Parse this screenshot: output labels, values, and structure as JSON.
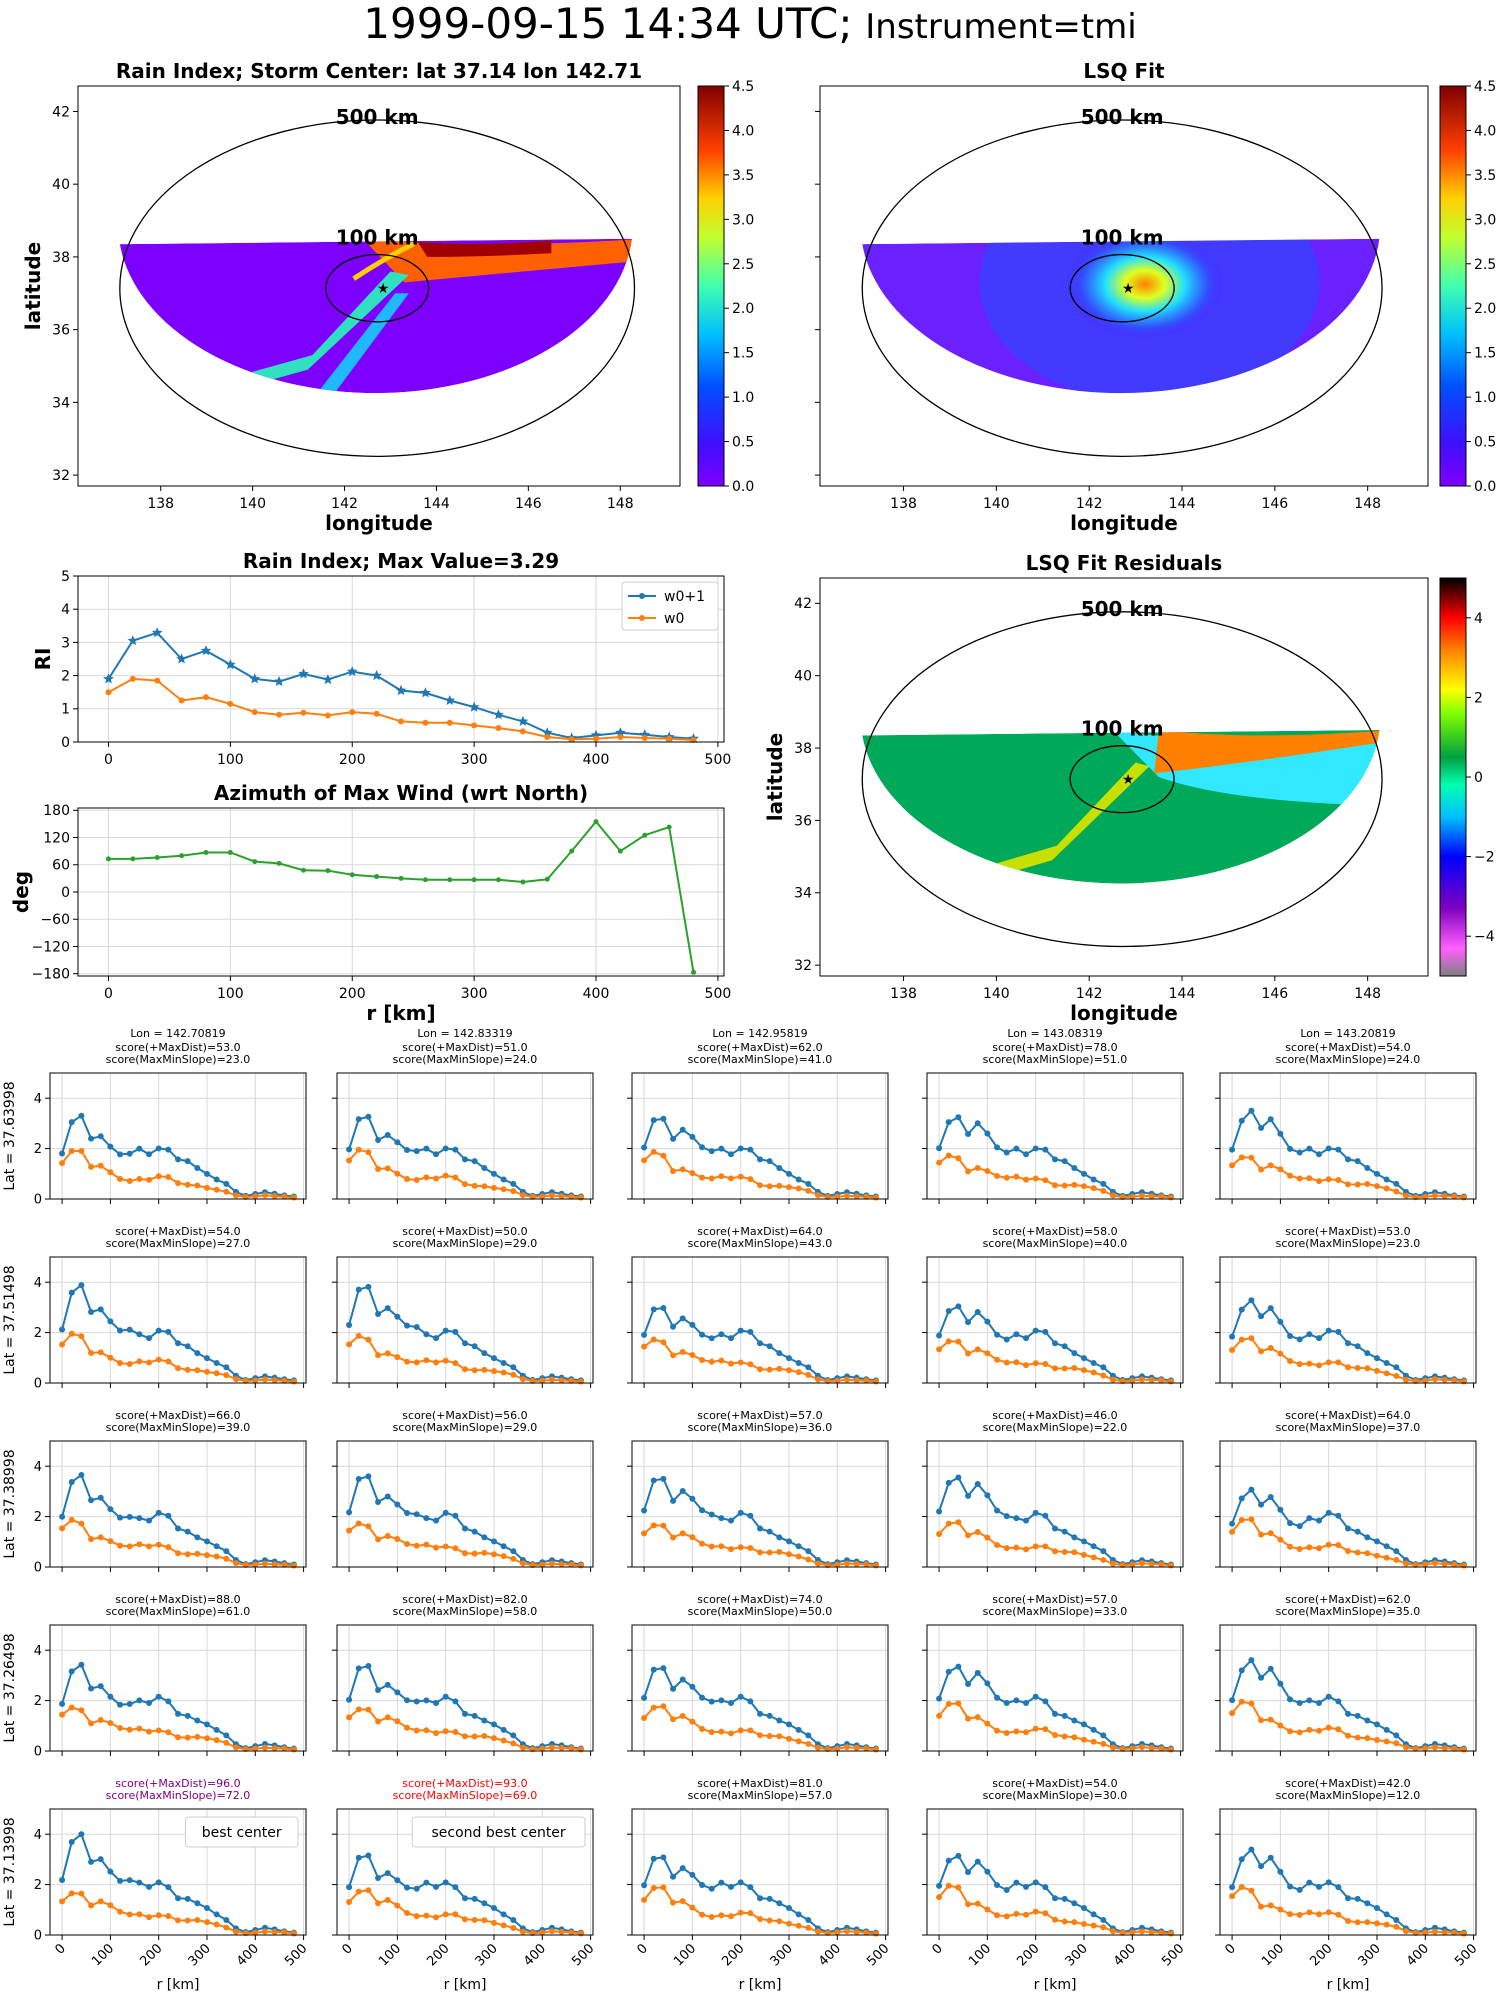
{
  "page": {
    "title_date": "1999-09-15 14:34 UTC;",
    "title_instrument": "Instrument=tmi"
  },
  "chart_data": [
    {
      "id": "rain-index-map",
      "type": "heatmap",
      "title": "Rain Index; Storm Center: lat 37.14 lon 142.71",
      "xlabel": "longitude",
      "ylabel": "latitude",
      "xlim": [
        136.2,
        149.3
      ],
      "ylim": [
        31.7,
        42.7
      ],
      "xticks": [
        138,
        140,
        142,
        144,
        146,
        148
      ],
      "yticks": [
        32,
        34,
        36,
        38,
        40,
        42
      ],
      "center": {
        "lon": 142.71,
        "lat": 37.14
      },
      "ring_labels": [
        "500 km",
        "100 km"
      ],
      "colorbar": {
        "range": [
          0,
          4.5
        ],
        "ticks": [
          "0.0",
          "0.5",
          "1.0",
          "1.5",
          "2.0",
          "2.5",
          "3.0",
          "3.5",
          "4.0",
          "4.5"
        ],
        "colormap": "jet"
      }
    },
    {
      "id": "lsq-fit-map",
      "type": "heatmap",
      "title": "LSQ Fit",
      "xlabel": "longitude",
      "ylabel": "",
      "xlim": [
        136.2,
        149.3
      ],
      "ylim": [
        31.7,
        42.7
      ],
      "xticks": [
        138,
        140,
        142,
        144,
        146,
        148
      ],
      "ring_labels": [
        "500 km",
        "100 km"
      ],
      "colorbar": {
        "range": [
          0,
          4.5
        ],
        "ticks": [
          "0.0",
          "0.5",
          "1.0",
          "1.5",
          "2.0",
          "2.5",
          "3.0",
          "3.5",
          "4.0",
          "4.5"
        ],
        "colormap": "jet"
      }
    },
    {
      "id": "rain-index-profile",
      "type": "line",
      "title": "Rain Index; Max Value=3.29",
      "xlabel": "",
      "ylabel": "RI",
      "xlim": [
        -25,
        505
      ],
      "ylim": [
        0,
        5
      ],
      "xticks": [
        0,
        100,
        200,
        300,
        400,
        500
      ],
      "yticks": [
        0,
        1,
        2,
        3,
        4,
        5
      ],
      "grid": true,
      "legend": "top-right",
      "x": [
        0,
        20,
        40,
        60,
        80,
        100,
        120,
        140,
        160,
        180,
        200,
        220,
        240,
        260,
        280,
        300,
        320,
        340,
        360,
        380,
        400,
        420,
        440,
        460,
        480
      ],
      "series": [
        {
          "name": "w0+1",
          "color": "#1f77b4",
          "values": [
            1.9,
            3.05,
            3.29,
            2.5,
            2.75,
            2.33,
            1.9,
            1.82,
            2.05,
            1.88,
            2.12,
            2.0,
            1.55,
            1.48,
            1.25,
            1.05,
            0.82,
            0.62,
            0.28,
            0.12,
            0.2,
            0.28,
            0.22,
            0.15,
            0.1
          ]
        },
        {
          "name": "w0",
          "color": "#ff7f0e",
          "values": [
            1.5,
            1.9,
            1.85,
            1.25,
            1.35,
            1.15,
            0.9,
            0.82,
            0.88,
            0.8,
            0.9,
            0.85,
            0.62,
            0.58,
            0.58,
            0.5,
            0.42,
            0.32,
            0.15,
            0.08,
            0.1,
            0.15,
            0.12,
            0.1,
            0.06
          ]
        }
      ]
    },
    {
      "id": "azimuth-profile",
      "type": "line",
      "title": "Azimuth of Max Wind (wrt North)",
      "xlabel": "r [km]",
      "ylabel": "deg",
      "xlim": [
        -25,
        505
      ],
      "ylim": [
        -185,
        185
      ],
      "xticks": [
        0,
        100,
        200,
        300,
        400,
        500
      ],
      "yticks": [
        -180,
        -120,
        -60,
        0,
        60,
        120,
        180
      ],
      "grid": true,
      "x": [
        0,
        20,
        40,
        60,
        80,
        100,
        120,
        140,
        160,
        180,
        200,
        220,
        240,
        260,
        280,
        300,
        320,
        340,
        360,
        380,
        400,
        420,
        440,
        460,
        480
      ],
      "series": [
        {
          "color": "#2ca02c",
          "values": [
            73,
            73,
            76,
            80,
            87,
            87,
            67,
            63,
            48,
            47,
            38,
            34,
            30,
            27,
            27,
            27,
            27,
            22,
            28,
            90,
            155,
            90,
            125,
            143,
            -177
          ]
        }
      ]
    },
    {
      "id": "lsq-residuals-map",
      "type": "heatmap",
      "title": "LSQ Fit Residuals",
      "xlabel": "longitude",
      "ylabel": "latitude",
      "xlim": [
        136.2,
        149.3
      ],
      "ylim": [
        31.7,
        42.7
      ],
      "xticks": [
        138,
        140,
        142,
        144,
        146,
        148
      ],
      "yticks": [
        32,
        34,
        36,
        38,
        40,
        42
      ],
      "ring_labels": [
        "500 km",
        "100 km"
      ],
      "colorbar": {
        "range": [
          -5,
          5
        ],
        "ticks": [
          "−4",
          "−2",
          "0",
          "2",
          "4"
        ],
        "colormap": "nipy_spectral"
      }
    }
  ],
  "grid_panels": {
    "xlabel": "r [km]",
    "xticks": [
      0,
      100,
      200,
      300,
      400,
      500
    ],
    "yticks": [
      0,
      2,
      4
    ],
    "xlim": [
      -25,
      505
    ],
    "ylim": [
      0,
      5
    ],
    "r": [
      0,
      20,
      40,
      60,
      80,
      100,
      120,
      140,
      160,
      180,
      200,
      220,
      240,
      260,
      280,
      300,
      320,
      340,
      360,
      380,
      400,
      420,
      440,
      460,
      480
    ],
    "row_labels": [
      "Lat = 37.63998",
      "Lat = 37.51498",
      "Lat = 37.38998",
      "Lat = 37.26498",
      "Lat = 37.13998"
    ],
    "lon_labels": [
      "Lon = 142.70819",
      "Lon = 142.83319",
      "Lon = 142.95819",
      "Lon = 143.08319",
      "Lon = 143.20819"
    ],
    "rows": [
      [
        {
          "s1": "score(+MaxDist)=53.0",
          "s2": "score(MaxMinSlope)=23.0"
        },
        {
          "s1": "score(+MaxDist)=51.0",
          "s2": "score(MaxMinSlope)=24.0"
        },
        {
          "s1": "score(+MaxDist)=62.0",
          "s2": "score(MaxMinSlope)=41.0"
        },
        {
          "s1": "score(+MaxDist)=78.0",
          "s2": "score(MaxMinSlope)=51.0"
        },
        {
          "s1": "score(+MaxDist)=54.0",
          "s2": "score(MaxMinSlope)=24.0"
        }
      ],
      [
        {
          "s1": "score(+MaxDist)=54.0",
          "s2": "score(MaxMinSlope)=27.0"
        },
        {
          "s1": "score(+MaxDist)=50.0",
          "s2": "score(MaxMinSlope)=29.0"
        },
        {
          "s1": "score(+MaxDist)=64.0",
          "s2": "score(MaxMinSlope)=43.0"
        },
        {
          "s1": "score(+MaxDist)=58.0",
          "s2": "score(MaxMinSlope)=40.0"
        },
        {
          "s1": "score(+MaxDist)=53.0",
          "s2": "score(MaxMinSlope)=23.0"
        }
      ],
      [
        {
          "s1": "score(+MaxDist)=66.0",
          "s2": "score(MaxMinSlope)=39.0"
        },
        {
          "s1": "score(+MaxDist)=56.0",
          "s2": "score(MaxMinSlope)=29.0"
        },
        {
          "s1": "score(+MaxDist)=57.0",
          "s2": "score(MaxMinSlope)=36.0"
        },
        {
          "s1": "score(+MaxDist)=46.0",
          "s2": "score(MaxMinSlope)=22.0"
        },
        {
          "s1": "score(+MaxDist)=64.0",
          "s2": "score(MaxMinSlope)=37.0"
        }
      ],
      [
        {
          "s1": "score(+MaxDist)=88.0",
          "s2": "score(MaxMinSlope)=61.0"
        },
        {
          "s1": "score(+MaxDist)=82.0",
          "s2": "score(MaxMinSlope)=58.0"
        },
        {
          "s1": "score(+MaxDist)=74.0",
          "s2": "score(MaxMinSlope)=50.0"
        },
        {
          "s1": "score(+MaxDist)=57.0",
          "s2": "score(MaxMinSlope)=33.0"
        },
        {
          "s1": "score(+MaxDist)=62.0",
          "s2": "score(MaxMinSlope)=35.0"
        }
      ],
      [
        {
          "s1": "score(+MaxDist)=96.0",
          "s2": "score(MaxMinSlope)=72.0",
          "color": "#800080",
          "note": "best center"
        },
        {
          "s1": "score(+MaxDist)=93.0",
          "s2": "score(MaxMinSlope)=69.0",
          "color": "#ff0000",
          "note": "second best center"
        },
        {
          "s1": "score(+MaxDist)=81.0",
          "s2": "score(MaxMinSlope)=57.0"
        },
        {
          "s1": "score(+MaxDist)=54.0",
          "s2": "score(MaxMinSlope)=30.0"
        },
        {
          "s1": "score(+MaxDist)=42.0",
          "s2": "score(MaxMinSlope)=12.0"
        }
      ]
    ]
  }
}
